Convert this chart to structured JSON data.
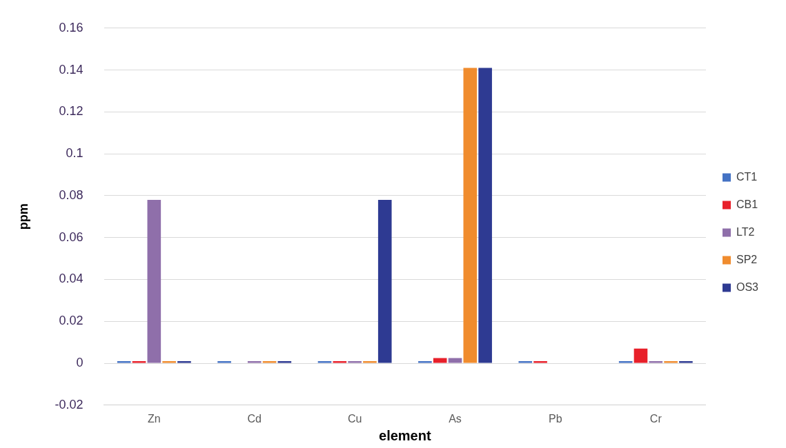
{
  "chart_data": {
    "type": "bar",
    "xlabel": "element",
    "ylabel": "ppm",
    "categories": [
      "Zn",
      "Cd",
      "Cu",
      "As",
      "Pb",
      "Cr"
    ],
    "series": [
      {
        "name": "CT1",
        "color": "#4472c4",
        "values": [
          0.001,
          0.001,
          0.001,
          0.001,
          0.001,
          0.001
        ]
      },
      {
        "name": "CB1",
        "color": "#e8202a",
        "values": [
          0.001,
          null,
          0.001,
          0.0025,
          0.001,
          0.007
        ]
      },
      {
        "name": "LT2",
        "color": "#8f6faa",
        "values": [
          0.078,
          0.001,
          0.001,
          0.0025,
          null,
          0.001
        ]
      },
      {
        "name": "SP2",
        "color": "#f08c2e",
        "values": [
          0.001,
          0.001,
          0.001,
          0.141,
          null,
          0.001
        ]
      },
      {
        "name": "OS3",
        "color": "#2e3a92",
        "values": [
          0.001,
          0.001,
          0.078,
          0.141,
          null,
          0.001
        ]
      }
    ],
    "ylim": [
      -0.02,
      0.16
    ],
    "yticks": [
      -0.02,
      0,
      0.02,
      0.04,
      0.06,
      0.08,
      0.1,
      0.12,
      0.14,
      0.16
    ],
    "grid": "y",
    "legend": "right"
  }
}
